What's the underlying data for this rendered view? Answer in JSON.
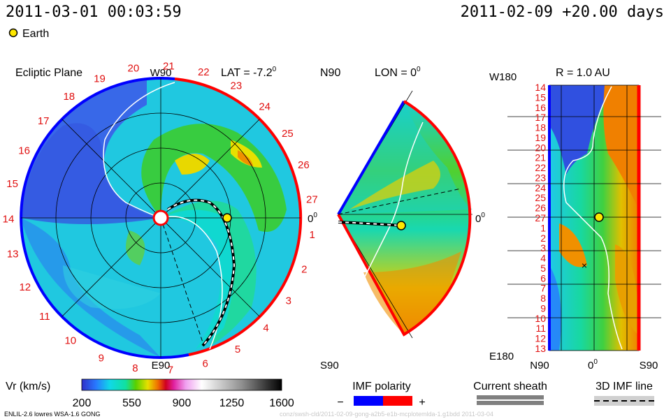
{
  "header": {
    "datetime": "2011-03-01 00:03:59",
    "run_label": "2011-02-09 +20.00 days",
    "earth_label": "Earth"
  },
  "panel_ecliptic": {
    "title": "Ecliptic Plane",
    "lat_label": "LAT = -7.2",
    "lat_unit": "0",
    "top_label": "W90",
    "bottom_label": "E90",
    "right_label": "0",
    "right_unit": "0",
    "rotation_days": [
      "27",
      "1",
      "2",
      "3",
      "4",
      "5",
      "6",
      "7",
      "8",
      "9",
      "10",
      "11",
      "12",
      "13",
      "14",
      "15",
      "16",
      "17",
      "18",
      "19",
      "20",
      "21",
      "22",
      "23",
      "24",
      "25",
      "26"
    ]
  },
  "panel_meridional": {
    "top_label": "N90",
    "lon_label": "LON = 0",
    "lon_unit": "0",
    "bottom_label": "S90",
    "right_label": "0",
    "right_unit": "0"
  },
  "panel_radial": {
    "title": "R = 1.0 AU",
    "top_label": "W180",
    "bottom_label": "E180",
    "x_labels": [
      "N90",
      "0",
      "S90"
    ],
    "x_zero_unit": "0",
    "y_labels": [
      "14",
      "15",
      "16",
      "17",
      "18",
      "19",
      "20",
      "21",
      "22",
      "23",
      "24",
      "25",
      "26",
      "27",
      "1",
      "2",
      "3",
      "4",
      "5",
      "6",
      "7",
      "8",
      "9",
      "10",
      "11",
      "12",
      "13"
    ]
  },
  "legend": {
    "colorbar_label": "Vr (km/s)",
    "colorbar_ticks": [
      "200",
      "550",
      "900",
      "1250",
      "1600"
    ],
    "colorbar_range": [
      200,
      1600
    ],
    "imf_polarity_label": "IMF polarity",
    "imf_minus": "−",
    "imf_plus": "+",
    "imf_colors": {
      "negative": "#0000ff",
      "positive": "#ff0000"
    },
    "current_sheath_label": "Current sheath",
    "imf_line_label": "3D IMF line"
  },
  "footer": {
    "model_info": "ENLIL-2.6 lowres WSA-1.6 GONG",
    "watermark": "conz/swsh-cld/2011-02-09-gong-a2b5-e1b-mcplotemlda-1.g1bdd   2011-03-04"
  },
  "colors": {
    "slow_wind": "#3050e0",
    "medium_wind": "#10e0c0",
    "fast_wind": "#f07000",
    "earth": "#ffe800",
    "label_red": "#e01010"
  },
  "chart_data": {
    "type": "heatmap",
    "variable": "Vr (km/s)",
    "scale_min": 200,
    "scale_max": 1600,
    "ecliptic_plane_radial_rings": 4,
    "earth_position_deg": 0,
    "earth_distance_au": 1.0,
    "radial_panel_lat_range": [
      "N90",
      "S90"
    ],
    "radial_panel_lon_range": [
      "W180",
      "E180"
    ]
  }
}
